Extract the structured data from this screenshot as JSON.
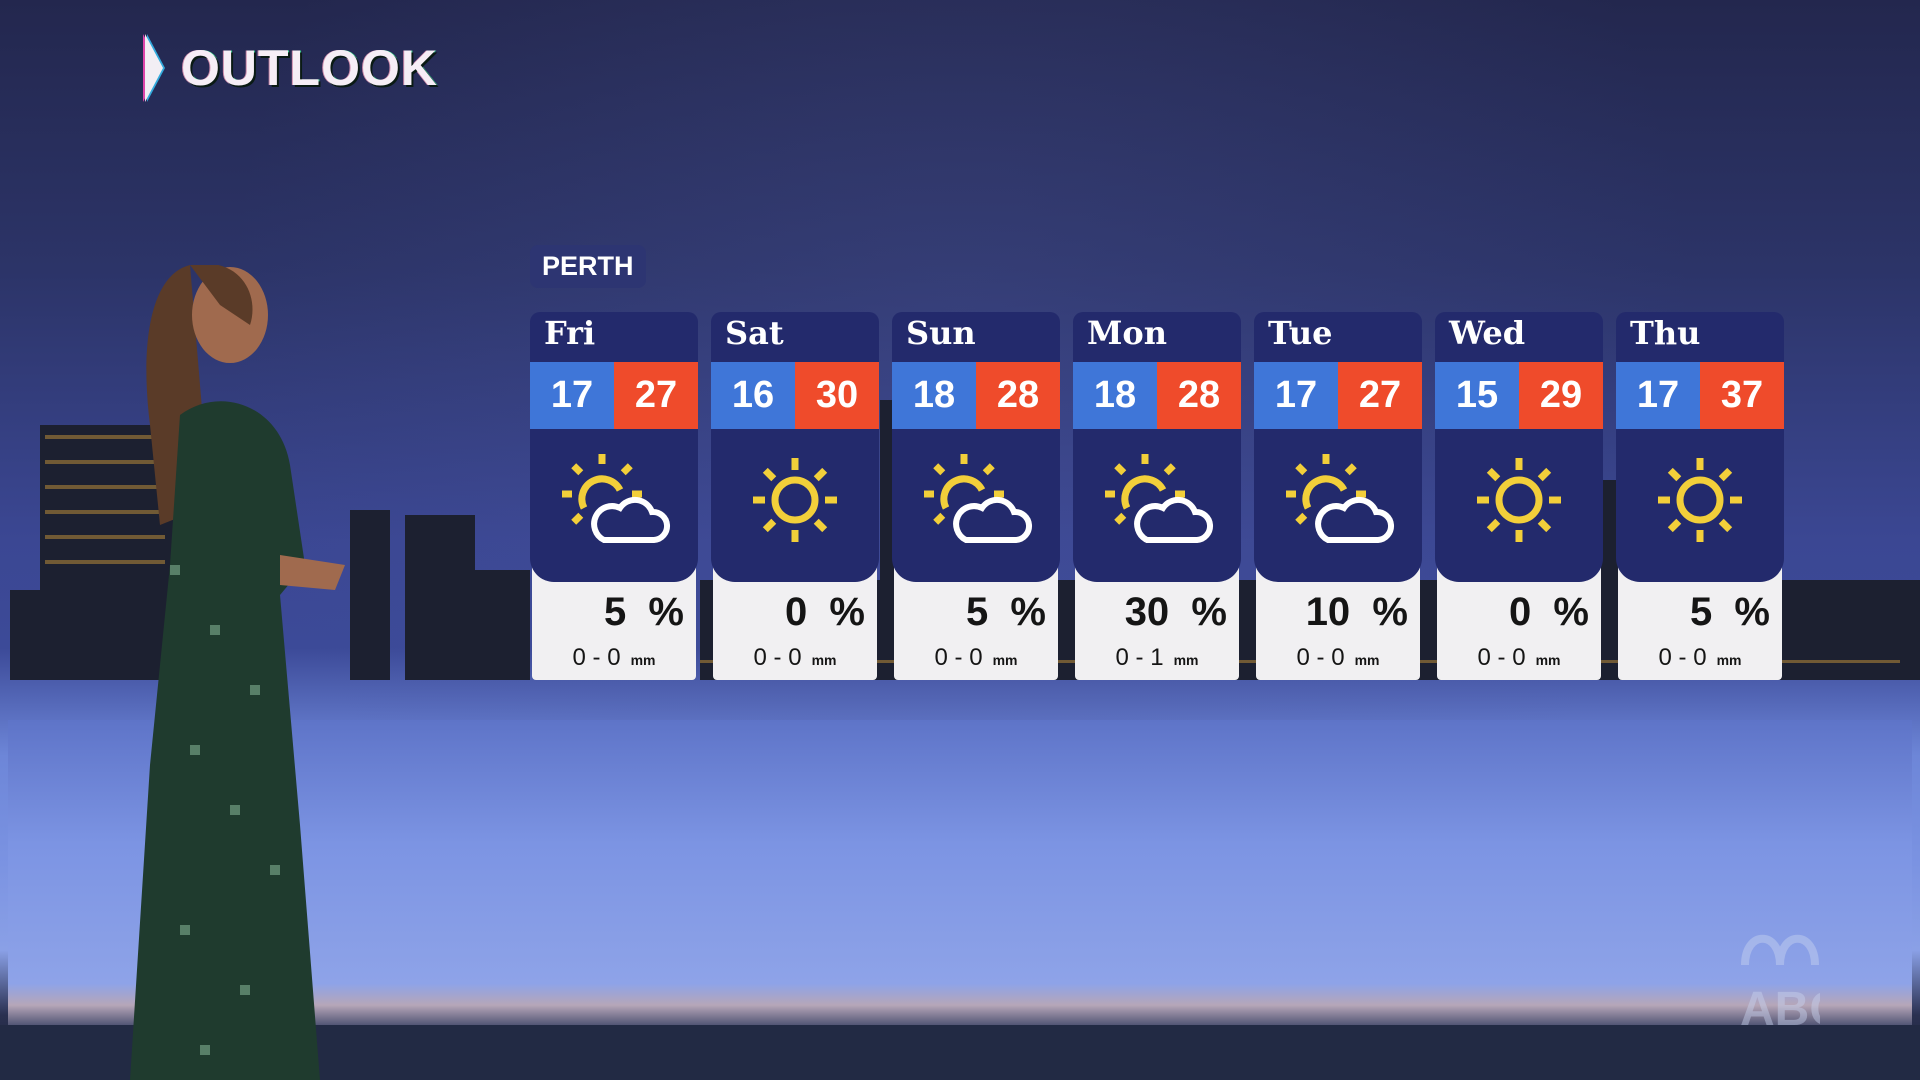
{
  "header": {
    "title": "OUTLOOK"
  },
  "location": "PERTH",
  "colors": {
    "min_bg": "#3f76d8",
    "max_bg": "#ef4b2b",
    "card_bg": "#232a6c",
    "sun": "#f2cf3a"
  },
  "forecast": [
    {
      "day": "Fri",
      "min": "17",
      "max": "27",
      "icon": "partly-cloudy-icon",
      "rain_chance": "5",
      "rain_unit": "%",
      "rain_from": "0",
      "rain_to": "0",
      "rain_mm_unit": "mm"
    },
    {
      "day": "Sat",
      "min": "16",
      "max": "30",
      "icon": "sunny-icon",
      "rain_chance": "0",
      "rain_unit": "%",
      "rain_from": "0",
      "rain_to": "0",
      "rain_mm_unit": "mm"
    },
    {
      "day": "Sun",
      "min": "18",
      "max": "28",
      "icon": "partly-cloudy-icon",
      "rain_chance": "5",
      "rain_unit": "%",
      "rain_from": "0",
      "rain_to": "0",
      "rain_mm_unit": "mm"
    },
    {
      "day": "Mon",
      "min": "18",
      "max": "28",
      "icon": "partly-cloudy-icon",
      "rain_chance": "30",
      "rain_unit": "%",
      "rain_from": "0",
      "rain_to": "1",
      "rain_mm_unit": "mm"
    },
    {
      "day": "Tue",
      "min": "17",
      "max": "27",
      "icon": "partly-cloudy-icon",
      "rain_chance": "10",
      "rain_unit": "%",
      "rain_from": "0",
      "rain_to": "0",
      "rain_mm_unit": "mm"
    },
    {
      "day": "Wed",
      "min": "15",
      "max": "29",
      "icon": "sunny-icon",
      "rain_chance": "0",
      "rain_unit": "%",
      "rain_from": "0",
      "rain_to": "0",
      "rain_mm_unit": "mm"
    },
    {
      "day": "Thu",
      "min": "17",
      "max": "37",
      "icon": "sunny-icon",
      "rain_chance": "5",
      "rain_unit": "%",
      "rain_from": "0",
      "rain_to": "0",
      "rain_mm_unit": "mm"
    }
  ],
  "watermark": "ABC TV"
}
